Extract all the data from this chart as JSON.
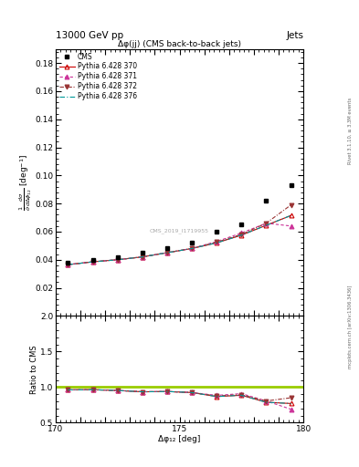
{
  "title_main": "13000 GeV pp",
  "title_right": "Jets",
  "plot_title": "Δφ(jj) (CMS back-to-back jets)",
  "watermark": "CMS_2019_I1719955",
  "rivet_label": "Rivet 3.1.10, ≥ 3.3M events",
  "arxiv_label": "mcplots.cern.ch [arXiv:1306.3436]",
  "xlabel": "Δφ₁₂ [deg]",
  "ylabel_ratio": "Ratio to CMS",
  "xlim": [
    170,
    180
  ],
  "ylim_main": [
    0.0,
    0.19
  ],
  "ylim_ratio": [
    0.5,
    2.0
  ],
  "yticks_main": [
    0.02,
    0.04,
    0.06,
    0.08,
    0.1,
    0.12,
    0.14,
    0.16,
    0.18
  ],
  "yticks_ratio": [
    0.5,
    1.0,
    1.5,
    2.0
  ],
  "cms_x": [
    170.5,
    171.5,
    172.5,
    173.5,
    174.5,
    175.5,
    176.5,
    177.5,
    178.5,
    179.5
  ],
  "cms_y": [
    0.038,
    0.04,
    0.042,
    0.045,
    0.048,
    0.052,
    0.06,
    0.065,
    0.082,
    0.093
  ],
  "py370_x": [
    170.5,
    171.5,
    172.5,
    173.5,
    174.5,
    175.5,
    176.5,
    177.5,
    178.5,
    179.5
  ],
  "py370_y": [
    0.0365,
    0.0385,
    0.04,
    0.042,
    0.045,
    0.048,
    0.052,
    0.0575,
    0.0645,
    0.0715
  ],
  "py371_x": [
    170.5,
    171.5,
    172.5,
    173.5,
    174.5,
    175.5,
    176.5,
    177.5,
    178.5,
    179.5
  ],
  "py371_y": [
    0.0365,
    0.0385,
    0.04,
    0.042,
    0.045,
    0.048,
    0.053,
    0.059,
    0.066,
    0.064
  ],
  "py372_x": [
    170.5,
    171.5,
    172.5,
    173.5,
    174.5,
    175.5,
    176.5,
    177.5,
    178.5,
    179.5
  ],
  "py372_y": [
    0.0365,
    0.0385,
    0.04,
    0.042,
    0.045,
    0.048,
    0.0525,
    0.058,
    0.066,
    0.079
  ],
  "py376_x": [
    170.5,
    171.5,
    172.5,
    173.5,
    174.5,
    175.5,
    176.5,
    177.5,
    178.5,
    179.5
  ],
  "py376_y": [
    0.0365,
    0.0385,
    0.04,
    0.042,
    0.045,
    0.048,
    0.052,
    0.0575,
    0.0645,
    0.0715
  ],
  "color_370": "#cc0000",
  "color_371": "#cc3399",
  "color_372": "#993333",
  "color_376": "#009999",
  "color_cms": "#000000",
  "color_ratio_line": "#99cc00"
}
